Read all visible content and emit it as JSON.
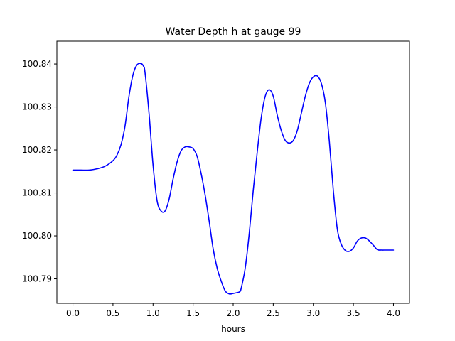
{
  "chart_data": {
    "type": "line",
    "title": "Water Depth h at gauge 99",
    "xlabel": "hours",
    "ylabel": "",
    "xlim": [
      -0.2,
      4.2
    ],
    "ylim": [
      100.7843,
      100.8453
    ],
    "x_ticks": [
      0.0,
      0.5,
      1.0,
      1.5,
      2.0,
      2.5,
      3.0,
      3.5,
      4.0
    ],
    "x_tick_labels": [
      "0.0",
      "0.5",
      "1.0",
      "1.5",
      "2.0",
      "2.5",
      "3.0",
      "3.5",
      "4.0"
    ],
    "y_ticks": [
      100.79,
      100.8,
      100.81,
      100.82,
      100.83,
      100.84
    ],
    "y_tick_labels": [
      "100.79",
      "100.80",
      "100.81",
      "100.82",
      "100.83",
      "100.84"
    ],
    "grid": false,
    "series": [
      {
        "name": "",
        "color": "#0000ff",
        "x": [
          0.0,
          0.1,
          0.2,
          0.3,
          0.4,
          0.5,
          0.55,
          0.6,
          0.65,
          0.7,
          0.75,
          0.8,
          0.85,
          0.88,
          0.9,
          0.95,
          1.0,
          1.05,
          1.1,
          1.15,
          1.2,
          1.25,
          1.3,
          1.35,
          1.4,
          1.45,
          1.5,
          1.55,
          1.6,
          1.65,
          1.7,
          1.75,
          1.8,
          1.85,
          1.9,
          1.95,
          2.0,
          2.05,
          2.08,
          2.1,
          2.15,
          2.2,
          2.25,
          2.3,
          2.35,
          2.4,
          2.45,
          2.5,
          2.55,
          2.6,
          2.65,
          2.7,
          2.75,
          2.8,
          2.85,
          2.9,
          2.95,
          3.0,
          3.05,
          3.1,
          3.15,
          3.2,
          3.25,
          3.3,
          3.35,
          3.4,
          3.45,
          3.5,
          3.55,
          3.6,
          3.65,
          3.7,
          3.75,
          3.8,
          3.85,
          3.9,
          3.95,
          4.0
        ],
        "y": [
          100.8153,
          100.8153,
          100.8153,
          100.8156,
          100.8162,
          100.8175,
          100.8188,
          100.8212,
          100.8255,
          100.8325,
          100.8375,
          100.8398,
          100.8401,
          100.8395,
          100.838,
          100.8285,
          100.8165,
          100.8082,
          100.8058,
          100.8058,
          100.8085,
          100.8132,
          100.8172,
          100.8198,
          100.8207,
          100.8207,
          100.8203,
          100.8185,
          100.8145,
          100.8095,
          100.8035,
          100.797,
          100.7925,
          100.7895,
          100.7872,
          100.7865,
          100.7866,
          100.7868,
          100.787,
          100.7878,
          100.7925,
          100.8005,
          100.8105,
          100.8195,
          100.8275,
          100.8325,
          100.834,
          100.8325,
          100.8281,
          100.8245,
          100.8222,
          100.8216,
          100.8222,
          100.8245,
          100.8285,
          100.8325,
          100.8355,
          100.837,
          100.8372,
          100.8355,
          100.831,
          100.822,
          100.8105,
          100.8015,
          100.798,
          100.7966,
          100.7964,
          100.7972,
          100.7988,
          100.7995,
          100.7995,
          100.7988,
          100.7978,
          100.7968,
          100.7967,
          100.7967,
          100.7967,
          100.7967
        ]
      }
    ]
  }
}
